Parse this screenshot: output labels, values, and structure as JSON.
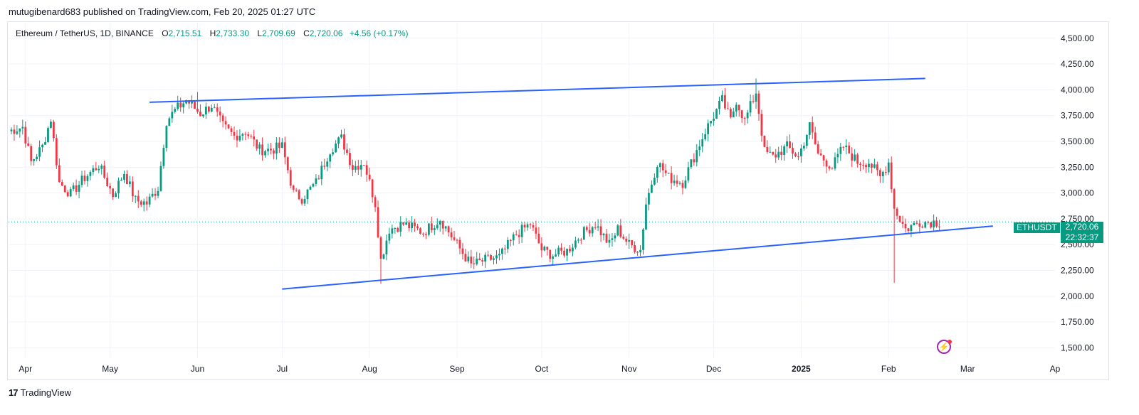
{
  "publisher_line": "mutugibenard683 published on TradingView.com, Feb 20, 2025 01:27 UTC",
  "symbol": {
    "name": "Ethereum / TetherUS, 1D, BINANCE",
    "o_label": "O",
    "o_value": "2,715.51",
    "h_label": "H",
    "h_value": "2,733.30",
    "l_label": "L",
    "l_value": "2,709.69",
    "c_label": "C",
    "c_value": "2,720.06",
    "change": "+4.56 (+0.17%)"
  },
  "price_tags": {
    "ticker": "ETHUSDT",
    "last": "2,720.06",
    "countdown": "22:32:37"
  },
  "footer": {
    "logo": "17",
    "brand": "TradingView"
  },
  "colors": {
    "up": "#089981",
    "down": "#f23645",
    "trendline": "#2962ff",
    "grid": "#f0f3fa"
  },
  "icons": [
    "tradingview-logo-icon",
    "lightning-icon"
  ],
  "chart_data": {
    "type": "candlestick",
    "title": "Ethereum / TetherUS, 1D, BINANCE",
    "ylim": [
      1400,
      4650
    ],
    "y_ticks": [
      "4,500.00",
      "4,250.00",
      "4,000.00",
      "3,750.00",
      "3,500.00",
      "3,250.00",
      "3,000.00",
      "2,750.00",
      "2,500.00",
      "2,250.00",
      "2,000.00",
      "1,750.00",
      "1,500.00"
    ],
    "y_tick_values": [
      4500,
      4250,
      4000,
      3750,
      3500,
      3250,
      3000,
      2750,
      2500,
      2250,
      2000,
      1750,
      1500
    ],
    "x_ticks": [
      "Apr",
      "May",
      "Jun",
      "Jul",
      "Aug",
      "Sep",
      "Oct",
      "Nov",
      "Dec",
      "2025",
      "Feb",
      "Mar",
      "Ap"
    ],
    "x_tick_dates": [
      "2024-04-01",
      "2024-05-01",
      "2024-06-01",
      "2024-07-01",
      "2024-08-01",
      "2024-09-01",
      "2024-10-01",
      "2024-11-01",
      "2024-12-01",
      "2025-01-01",
      "2025-02-01",
      "2025-03-01",
      "2025-04-01"
    ],
    "x_range": [
      "2024-03-26",
      "2025-04-01"
    ],
    "grid": true,
    "last_price": 2720.06,
    "close_path": [
      [
        "2024-03-26",
        3600
      ],
      [
        "2024-03-31",
        3640
      ],
      [
        "2024-04-03",
        3300
      ],
      [
        "2024-04-07",
        3450
      ],
      [
        "2024-04-10",
        3720
      ],
      [
        "2024-04-13",
        3100
      ],
      [
        "2024-04-17",
        2990
      ],
      [
        "2024-04-22",
        3150
      ],
      [
        "2024-04-27",
        3270
      ],
      [
        "2024-05-02",
        2980
      ],
      [
        "2024-05-06",
        3200
      ],
      [
        "2024-05-10",
        2930
      ],
      [
        "2024-05-14",
        2900
      ],
      [
        "2024-05-18",
        3050
      ],
      [
        "2024-05-21",
        3700
      ],
      [
        "2024-05-24",
        3800
      ],
      [
        "2024-05-28",
        3900
      ],
      [
        "2024-06-02",
        3770
      ],
      [
        "2024-06-06",
        3850
      ],
      [
        "2024-06-10",
        3650
      ],
      [
        "2024-06-14",
        3550
      ],
      [
        "2024-06-18",
        3600
      ],
      [
        "2024-06-23",
        3420
      ],
      [
        "2024-06-27",
        3420
      ],
      [
        "2024-07-01",
        3450
      ],
      [
        "2024-07-05",
        3000
      ],
      [
        "2024-07-08",
        2950
      ],
      [
        "2024-07-13",
        3100
      ],
      [
        "2024-07-18",
        3420
      ],
      [
        "2024-07-22",
        3530
      ],
      [
        "2024-07-26",
        3250
      ],
      [
        "2024-07-30",
        3300
      ],
      [
        "2024-08-03",
        2900
      ],
      [
        "2024-08-05",
        2350
      ],
      [
        "2024-08-08",
        2650
      ],
      [
        "2024-08-13",
        2700
      ],
      [
        "2024-08-20",
        2620
      ],
      [
        "2024-08-26",
        2750
      ],
      [
        "2024-09-01",
        2500
      ],
      [
        "2024-09-06",
        2300
      ],
      [
        "2024-09-11",
        2350
      ],
      [
        "2024-09-16",
        2380
      ],
      [
        "2024-09-22",
        2600
      ],
      [
        "2024-09-27",
        2700
      ],
      [
        "2024-10-01",
        2450
      ],
      [
        "2024-10-05",
        2400
      ],
      [
        "2024-10-10",
        2440
      ],
      [
        "2024-10-15",
        2600
      ],
      [
        "2024-10-20",
        2700
      ],
      [
        "2024-10-25",
        2500
      ],
      [
        "2024-10-28",
        2650
      ],
      [
        "2024-11-01",
        2500
      ],
      [
        "2024-11-05",
        2450
      ],
      [
        "2024-11-07",
        2900
      ],
      [
        "2024-11-11",
        3300
      ],
      [
        "2024-11-15",
        3150
      ],
      [
        "2024-11-20",
        3100
      ],
      [
        "2024-11-24",
        3350
      ],
      [
        "2024-11-28",
        3600
      ],
      [
        "2024-12-04",
        3900
      ],
      [
        "2024-12-07",
        3700
      ],
      [
        "2024-12-09",
        3900
      ],
      [
        "2024-12-12",
        3700
      ],
      [
        "2024-12-16",
        3980
      ],
      [
        "2024-12-19",
        3400
      ],
      [
        "2024-12-22",
        3350
      ],
      [
        "2024-12-27",
        3450
      ],
      [
        "2024-12-31",
        3350
      ],
      [
        "2025-01-04",
        3650
      ],
      [
        "2025-01-07",
        3380
      ],
      [
        "2025-01-12",
        3250
      ],
      [
        "2025-01-16",
        3450
      ],
      [
        "2025-01-21",
        3300
      ],
      [
        "2025-01-25",
        3300
      ],
      [
        "2025-01-29",
        3150
      ],
      [
        "2025-02-01",
        3300
      ],
      [
        "2025-02-03",
        2850
      ],
      [
        "2025-02-07",
        2650
      ],
      [
        "2025-02-12",
        2720
      ],
      [
        "2025-02-19",
        2720
      ]
    ],
    "spikes": [
      {
        "date": "2024-08-05",
        "low": 2120
      },
      {
        "date": "2025-02-03",
        "low": 2130
      },
      {
        "date": "2024-12-16",
        "high": 4110
      },
      {
        "date": "2024-06-01",
        "high": 3980
      }
    ],
    "trendlines": [
      {
        "name": "",
        "points": [
          [
            "2024-05-15",
            3880
          ],
          [
            "2025-02-14",
            4110
          ]
        ]
      },
      {
        "name": "",
        "points": [
          [
            "2024-07-01",
            2070
          ],
          [
            "2025-03-10",
            2680
          ]
        ]
      }
    ]
  }
}
